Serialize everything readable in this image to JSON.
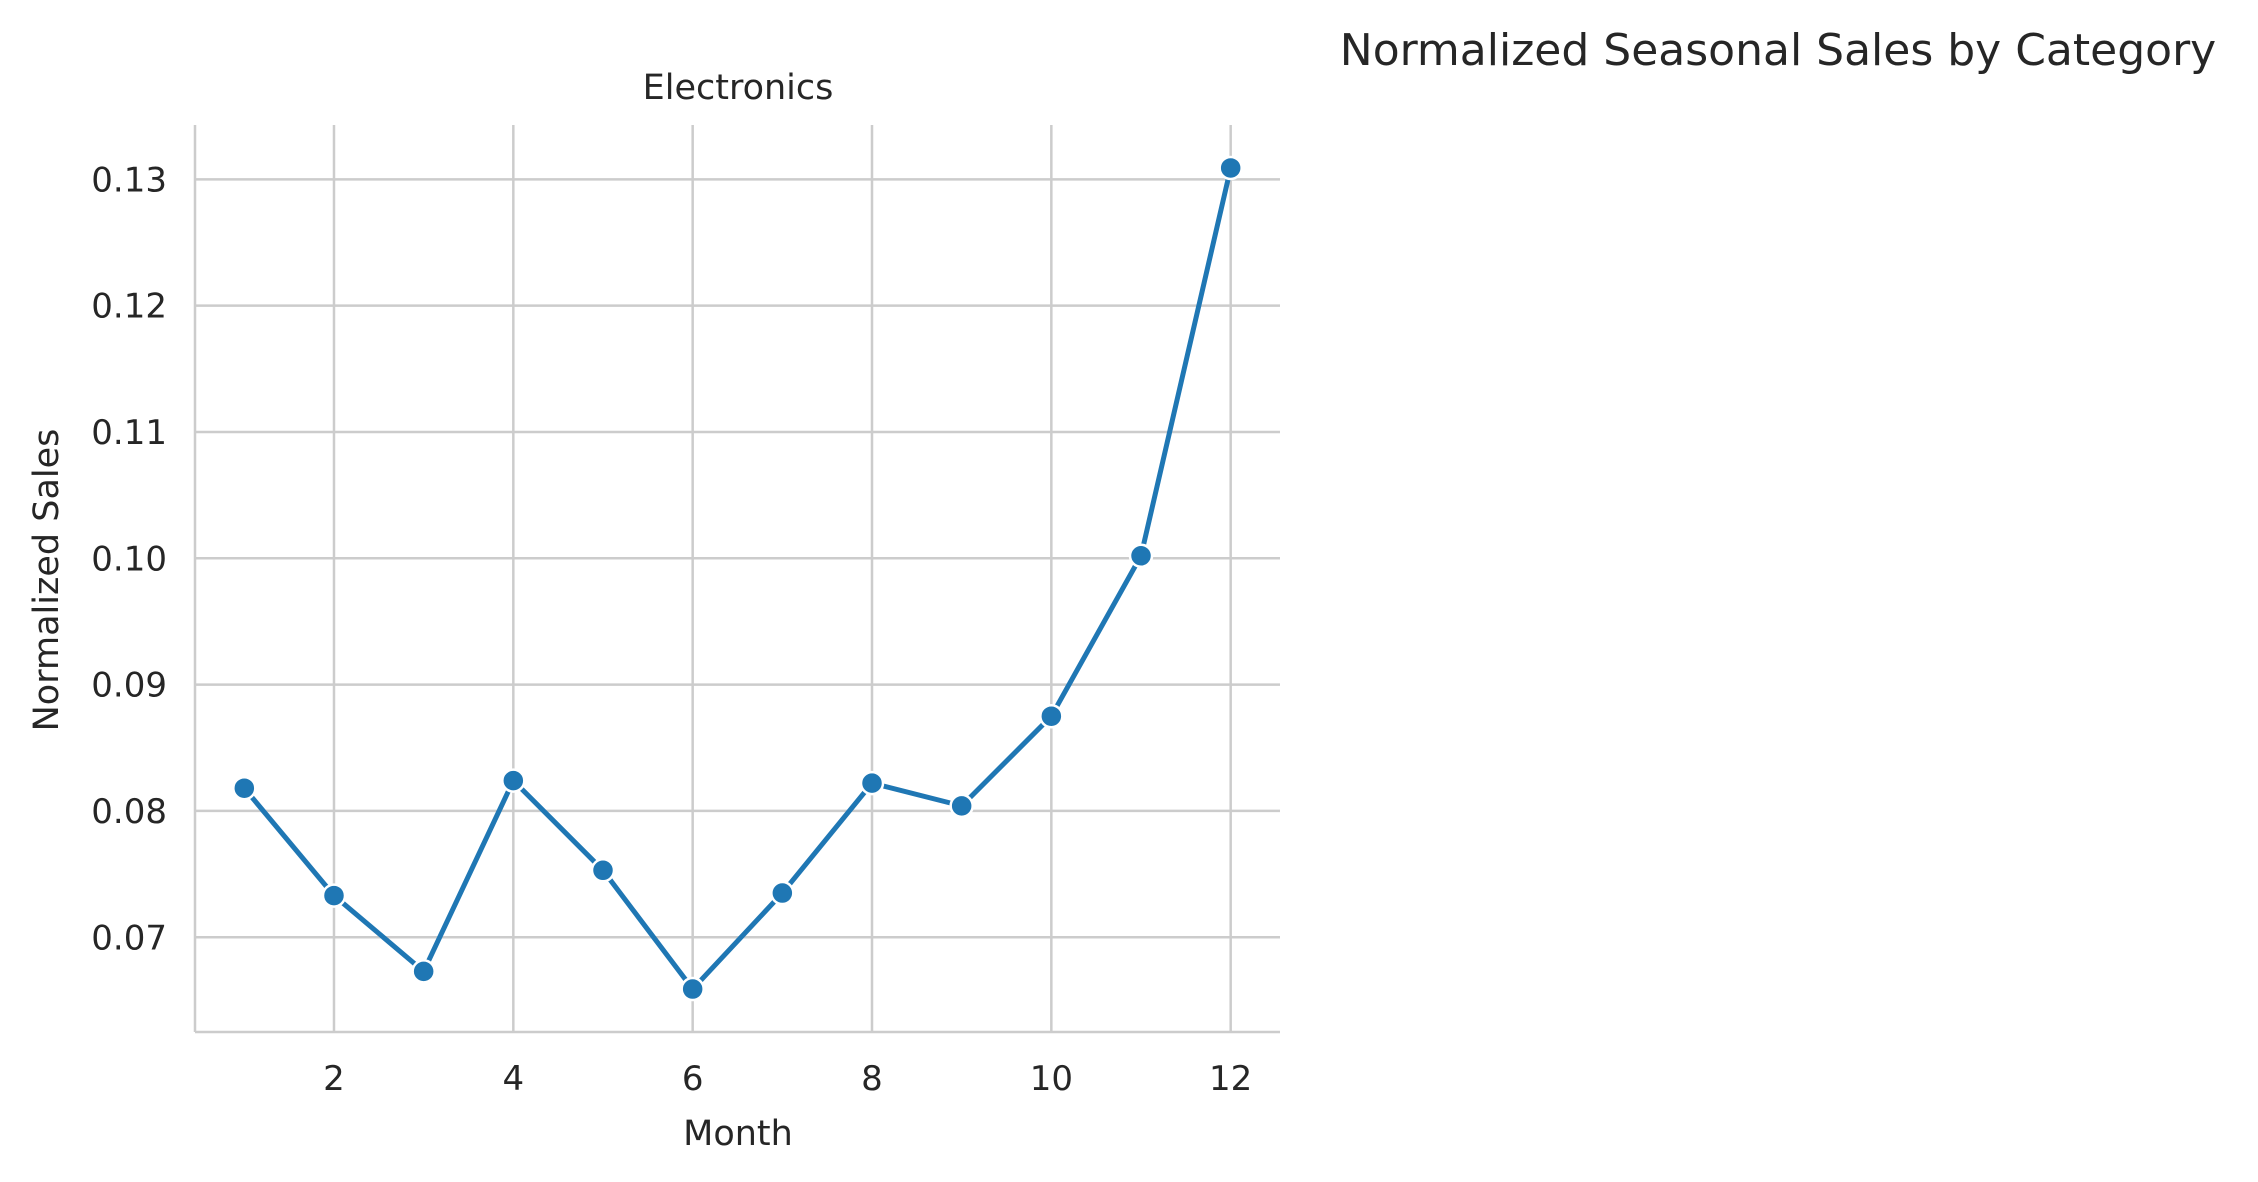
{
  "chart_data": {
    "type": "line",
    "title": "Normalized Seasonal Sales by Category",
    "subtitle": "Electronics",
    "xlabel": "Month",
    "ylabel": "Normalized Sales",
    "x": [
      1,
      2,
      3,
      4,
      5,
      6,
      7,
      8,
      9,
      10,
      11,
      12
    ],
    "series": [
      {
        "values": [
          0.0818,
          0.0733,
          0.0673,
          0.0824,
          0.0753,
          0.0659,
          0.0735,
          0.0822,
          0.0804,
          0.0875,
          0.1002,
          0.1309
        ]
      }
    ],
    "xticks": [
      2,
      4,
      6,
      8,
      10,
      12
    ],
    "xtick_labels": [
      "2",
      "4",
      "6",
      "8",
      "10",
      "12"
    ],
    "yticks": [
      0.07,
      0.08,
      0.09,
      0.1,
      0.11,
      0.12,
      0.13
    ],
    "ytick_labels": [
      "0.07",
      "0.08",
      "0.09",
      "0.10",
      "0.11",
      "0.12",
      "0.13"
    ],
    "xlim": [
      0.45,
      12.55
    ],
    "ylim": [
      0.0625,
      0.1343
    ],
    "grid": true,
    "colors": {
      "line": "#1f77b4",
      "marker_edge": "#ffffff",
      "grid": "#cccccc",
      "axis": "#cccccc"
    }
  }
}
